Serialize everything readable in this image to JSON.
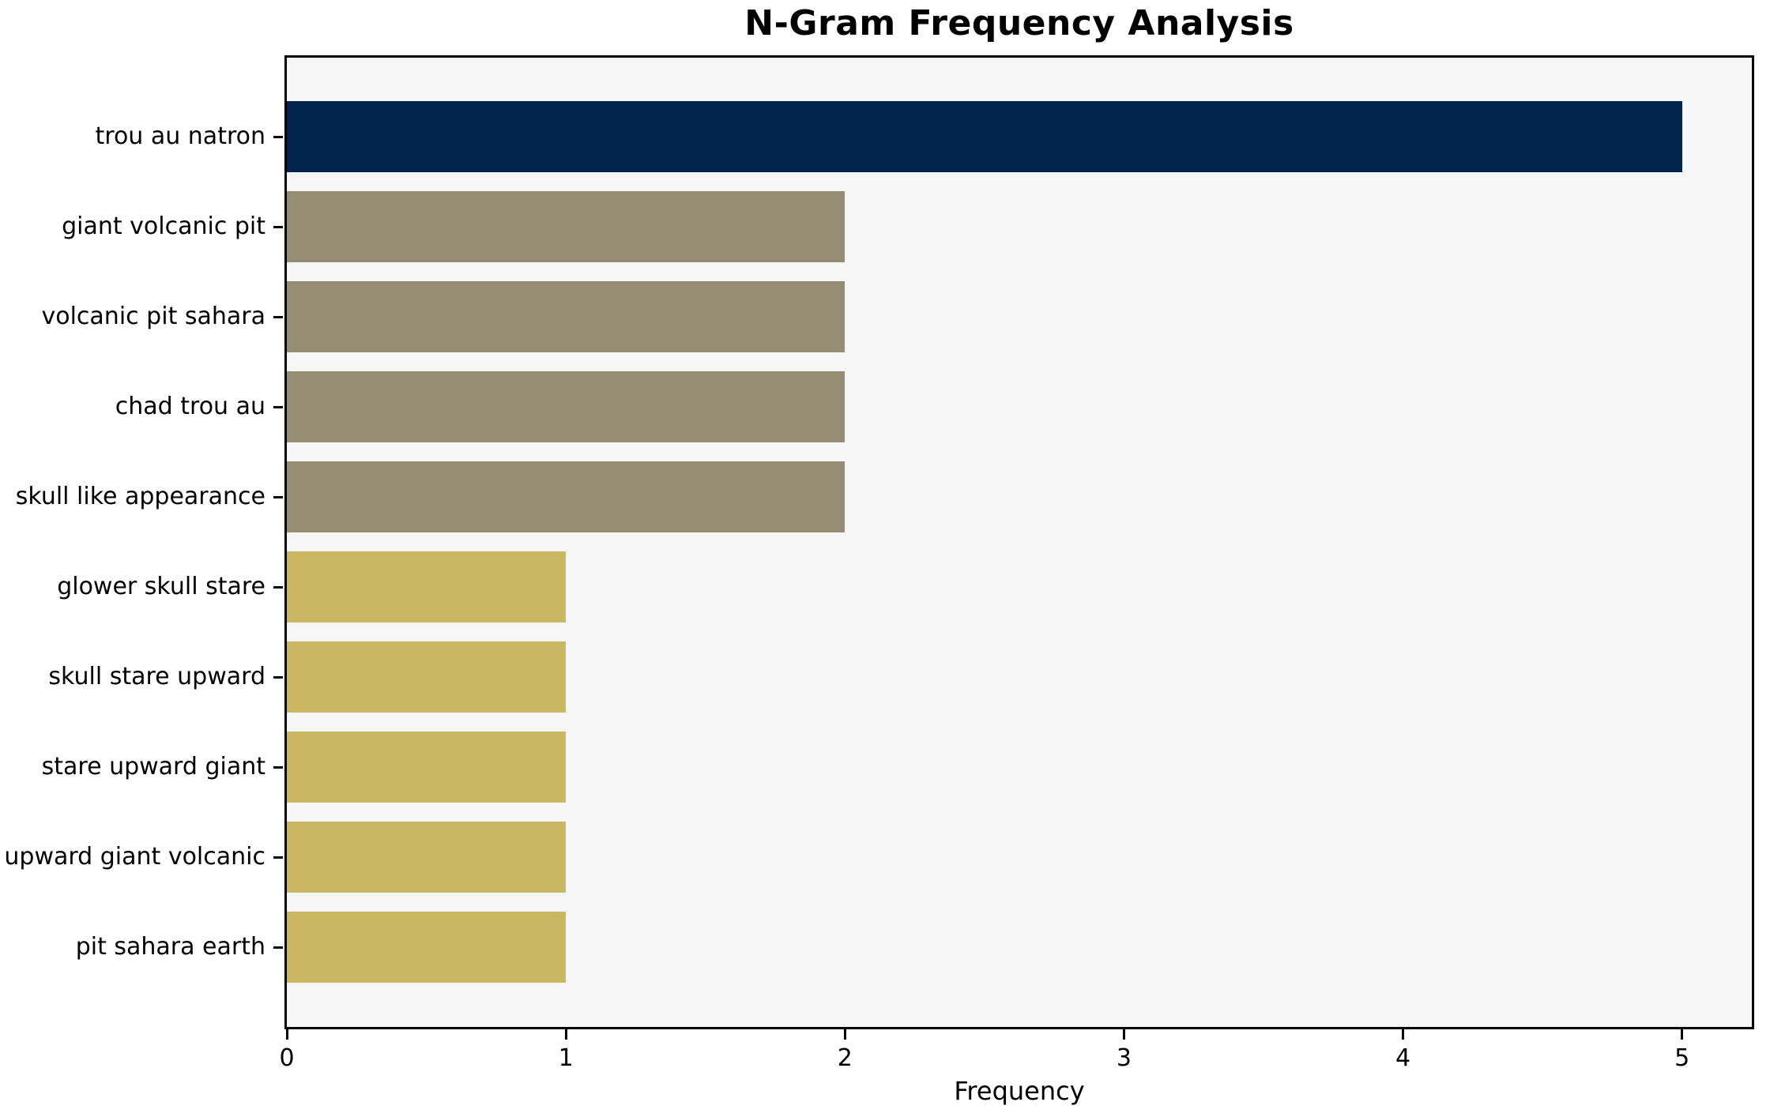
{
  "title": "N-Gram Frequency Analysis",
  "chart_data": {
    "type": "bar",
    "orientation": "horizontal",
    "title": "N-Gram Frequency Analysis",
    "xlabel": "Frequency",
    "ylabel": "",
    "categories": [
      "trou au natron",
      "giant volcanic pit",
      "volcanic pit sahara",
      "chad trou au",
      "skull like appearance",
      "glower skull stare",
      "skull stare upward",
      "stare upward giant",
      "upward giant volcanic",
      "pit sahara earth"
    ],
    "values": [
      5,
      2,
      2,
      2,
      2,
      1,
      1,
      1,
      1,
      1
    ],
    "bar_colors": [
      "#02234C",
      "#938D74",
      "#938D74",
      "#938D74",
      "#938D74",
      "#C9B763",
      "#C9B763",
      "#C9B763",
      "#C9B763",
      "#C9B763"
    ],
    "xlim": [
      0,
      5.25
    ],
    "x_ticks": [
      0,
      1,
      2,
      3,
      4,
      5
    ],
    "grid": false,
    "legend": false,
    "plot_background": "#F6F6F6",
    "axis_color": "#000000"
  }
}
